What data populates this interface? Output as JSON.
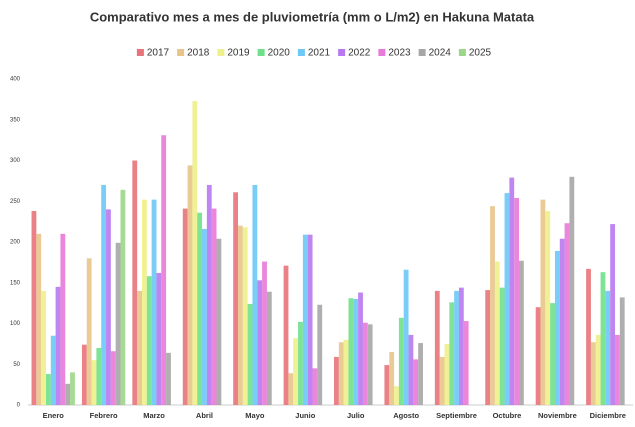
{
  "chart_data": {
    "type": "bar",
    "title": "Comparativo mes a mes de pluviometría (mm o L/m2) en Hakuna Matata",
    "categories": [
      "Enero",
      "Febrero",
      "Marzo",
      "Abril",
      "Mayo",
      "Junio",
      "Julio",
      "Agosto",
      "Septiembre",
      "Octubre",
      "Noviembre",
      "Diciembre"
    ],
    "series": [
      {
        "name": "2017",
        "color": "#e8737a",
        "values": [
          238,
          74,
          300,
          241,
          261,
          171,
          59,
          49,
          140,
          141,
          120,
          167
        ]
      },
      {
        "name": "2018",
        "color": "#e8c48a",
        "values": [
          210,
          180,
          140,
          294,
          220,
          39,
          77,
          65,
          59,
          244,
          252,
          77
        ]
      },
      {
        "name": "2019",
        "color": "#eef08a",
        "values": [
          140,
          55,
          252,
          373,
          218,
          82,
          80,
          23,
          75,
          176,
          238,
          86
        ]
      },
      {
        "name": "2020",
        "color": "#6fe08a",
        "values": [
          38,
          70,
          158,
          236,
          124,
          102,
          131,
          107,
          126,
          144,
          125,
          163
        ]
      },
      {
        "name": "2021",
        "color": "#6cc8f5",
        "values": [
          85,
          270,
          252,
          216,
          270,
          209,
          130,
          166,
          140,
          260,
          189,
          140
        ]
      },
      {
        "name": "2022",
        "color": "#b878f0",
        "values": [
          145,
          240,
          162,
          270,
          153,
          209,
          138,
          86,
          144,
          279,
          204,
          222
        ]
      },
      {
        "name": "2023",
        "color": "#e87ad8",
        "values": [
          210,
          66,
          331,
          241,
          176,
          45,
          101,
          56,
          103,
          254,
          223,
          86
        ]
      },
      {
        "name": "2024",
        "color": "#a6a6a6",
        "values": [
          26,
          199,
          64,
          204,
          139,
          123,
          99,
          76,
          null,
          177,
          280,
          132
        ]
      },
      {
        "name": "2025",
        "color": "#9cd68a",
        "values": [
          40,
          264,
          null,
          null,
          null,
          null,
          null,
          null,
          null,
          null,
          null,
          null
        ]
      }
    ],
    "ylim": [
      0,
      400
    ],
    "yticks": [
      0,
      50,
      100,
      150,
      200,
      250,
      300,
      350,
      400
    ],
    "grid": false,
    "legend": "top"
  }
}
